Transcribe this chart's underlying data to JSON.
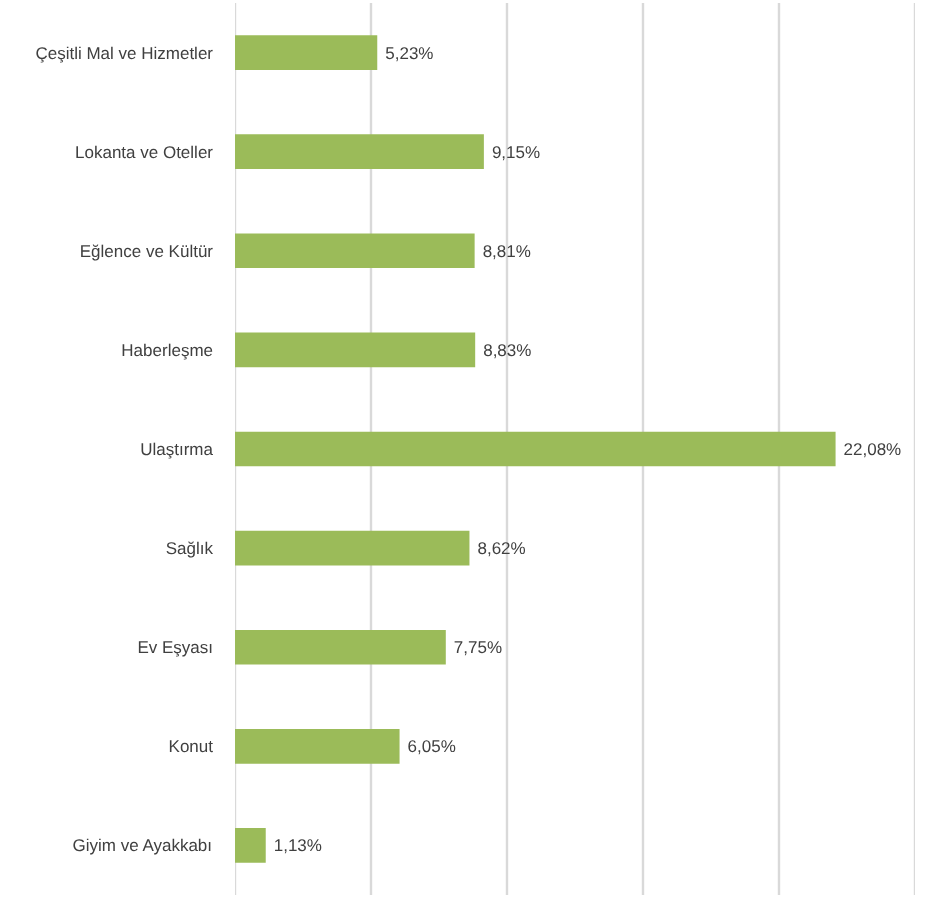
{
  "chart_data": {
    "type": "bar",
    "orientation": "horizontal",
    "categories": [
      "Çeşitli Mal ve Hizmetler",
      "Lokanta ve Oteller",
      "Eğlence ve Kültür",
      "Haberleşme",
      "Ulaştırma",
      "Sağlık",
      "Ev Eşyası",
      "Konut",
      "Giyim ve Ayakkabı"
    ],
    "values": [
      5.23,
      9.15,
      8.81,
      8.83,
      22.08,
      8.62,
      7.75,
      6.05,
      1.13
    ],
    "value_labels": [
      "5,23%",
      "9,15%",
      "8,81%",
      "8,83%",
      "22,08%",
      "8,62%",
      "7,75%",
      "6,05%",
      "1,13%"
    ],
    "color": "#9bbb59",
    "xlim": [
      0,
      25
    ],
    "xticks": [
      {
        "value": 0,
        "label": null
      },
      {
        "value": 5,
        "label": null
      },
      {
        "value": 10,
        "label": null
      },
      {
        "value": 15,
        "label": null
      },
      {
        "value": 20,
        "label": null
      },
      {
        "value": 25,
        "label": null
      }
    ],
    "grid": "x",
    "tick_labels": "y"
  }
}
